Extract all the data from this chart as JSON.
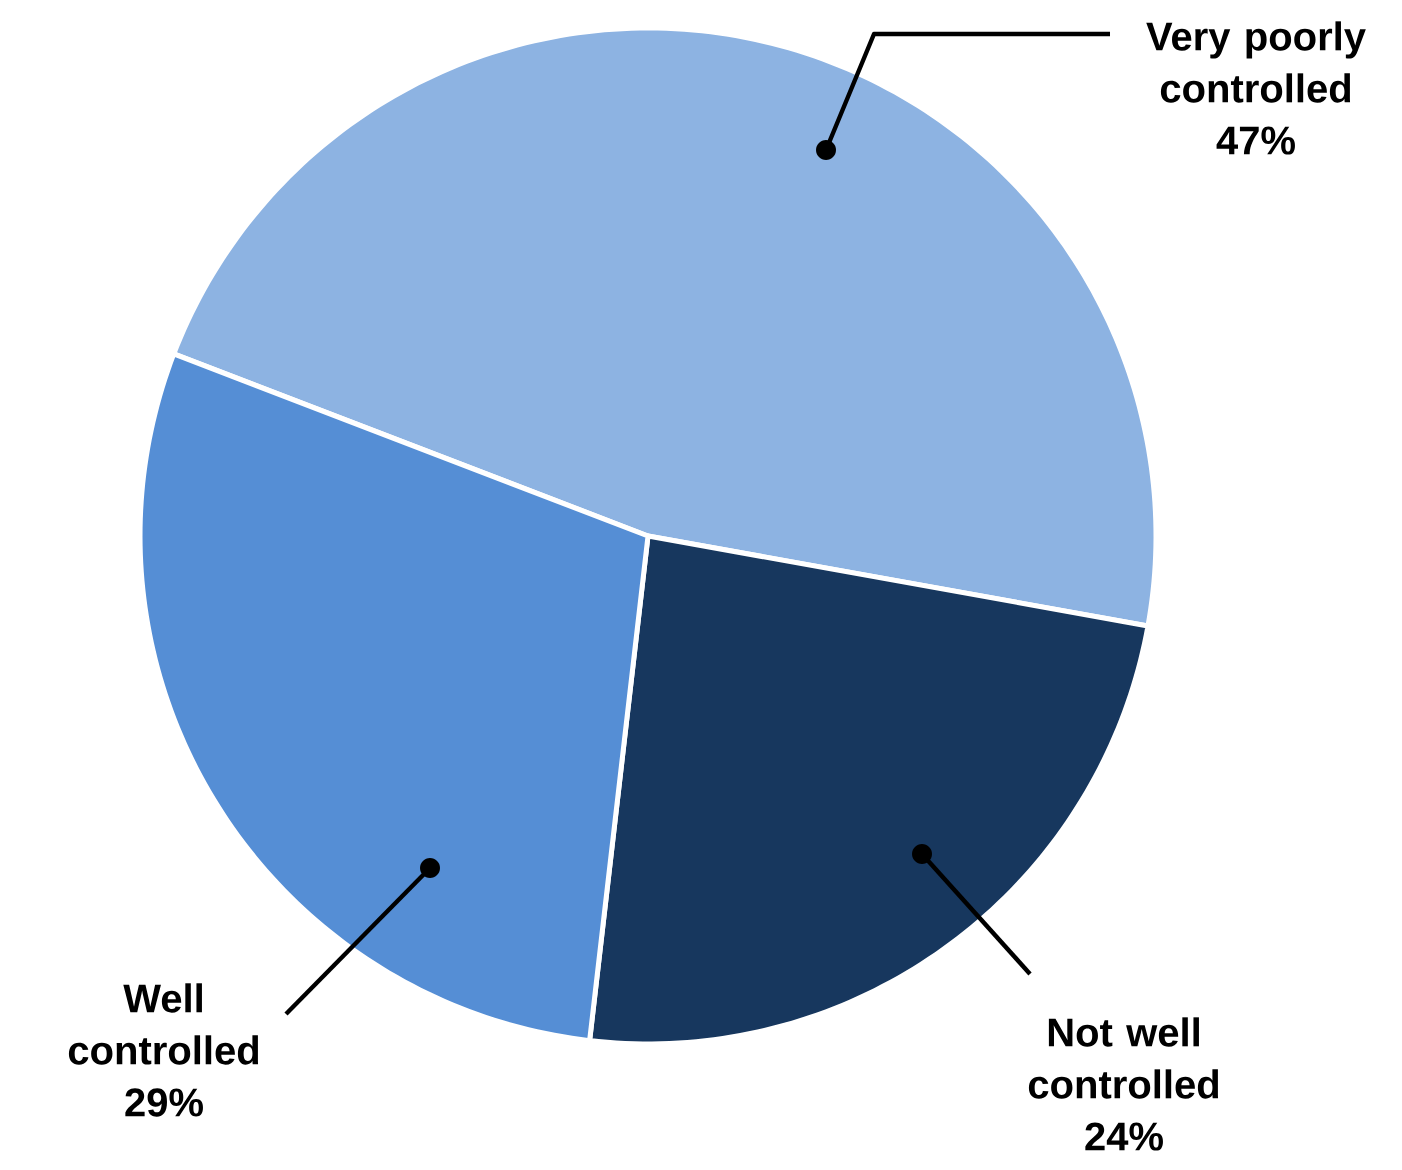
{
  "chart_data": {
    "type": "pie",
    "categories": [
      "Very poorly controlled",
      "Not well controlled",
      "Well controlled"
    ],
    "values": [
      47,
      24,
      29
    ],
    "colors": [
      "#8db3e2",
      "#17375e",
      "#558ed5"
    ],
    "value_labels": [
      "47%",
      "24%",
      "29%"
    ]
  }
}
